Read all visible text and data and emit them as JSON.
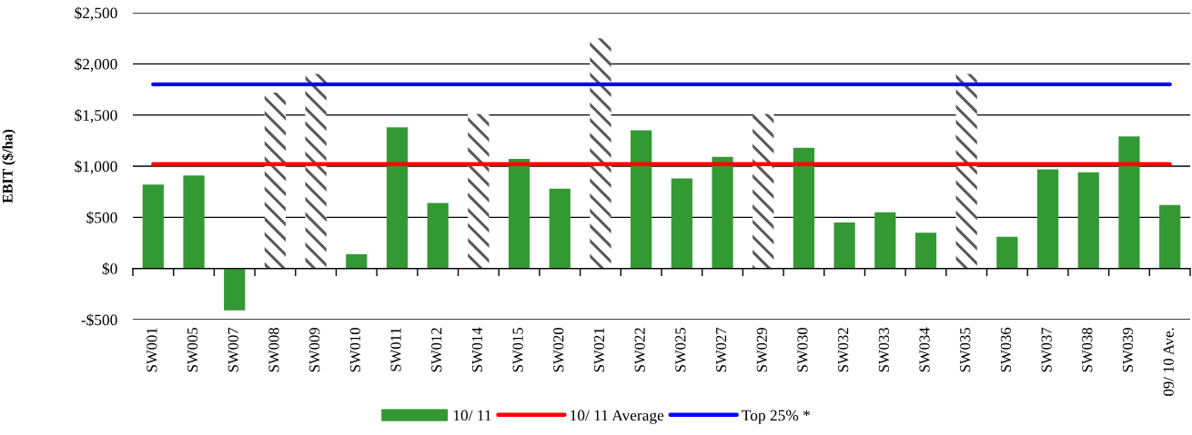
{
  "chart_data": {
    "type": "bar",
    "ylabel": "EBIT ($/ha)",
    "categories": [
      "SW001",
      "SW005",
      "SW007",
      "SW008",
      "SW009",
      "SW010",
      "SW011",
      "SW012",
      "SW014",
      "SW015",
      "SW020",
      "SW021",
      "SW022",
      "SW025",
      "SW027",
      "SW029",
      "SW030",
      "SW032",
      "SW033",
      "SW034",
      "SW035",
      "SW036",
      "SW037",
      "SW038",
      "SW039",
      "09/ 10 Ave."
    ],
    "stacked": true,
    "series": [
      {
        "name": "10/ 11",
        "color": "#339933",
        "values": [
          820,
          910,
          -410,
          null,
          null,
          140,
          1380,
          640,
          null,
          1070,
          780,
          null,
          1350,
          880,
          1090,
          null,
          1180,
          450,
          550,
          350,
          null,
          310,
          970,
          940,
          1290,
          620
        ]
      },
      {
        "color": "#595959",
        "values": [
          null,
          null,
          null,
          1720,
          1900,
          null,
          null,
          null,
          1510,
          null,
          null,
          2250,
          null,
          null,
          null,
          1510,
          null,
          null,
          null,
          null,
          1900,
          null,
          null,
          null,
          null,
          null
        ]
      },
      {
        "name": "10/ 11 Average",
        "type": "line",
        "color": "#ff0000",
        "values": [
          1020,
          1020,
          1020,
          1020,
          1020,
          1020,
          1020,
          1020,
          1020,
          1020,
          1020,
          1020,
          1020,
          1020,
          1020,
          1020,
          1020,
          1020,
          1020,
          1020,
          1020,
          1020,
          1020,
          1020,
          1020,
          1020
        ]
      },
      {
        "name": "Top 25% *",
        "type": "line",
        "color": "#0000ff",
        "values": [
          1800,
          1800,
          1800,
          1800,
          1800,
          1800,
          1800,
          1800,
          1800,
          1800,
          1800,
          1800,
          1800,
          1800,
          1800,
          1800,
          1800,
          1800,
          1800,
          1800,
          1800,
          1800,
          1800,
          1800,
          1800,
          1800
        ]
      }
    ],
    "ylim": [
      -500,
      2500
    ],
    "yticks": [
      {
        "value": -500,
        "label": "-$500"
      },
      {
        "value": 0,
        "label": "$0"
      },
      {
        "value": 500,
        "label": "$500"
      },
      {
        "value": 1000,
        "label": "$1,000"
      },
      {
        "value": 1500,
        "label": "$1,500"
      },
      {
        "value": 2000,
        "label": "$2,000"
      },
      {
        "value": 2500,
        "label": "$2,500"
      }
    ],
    "grid": "y",
    "legend": "bottom"
  }
}
